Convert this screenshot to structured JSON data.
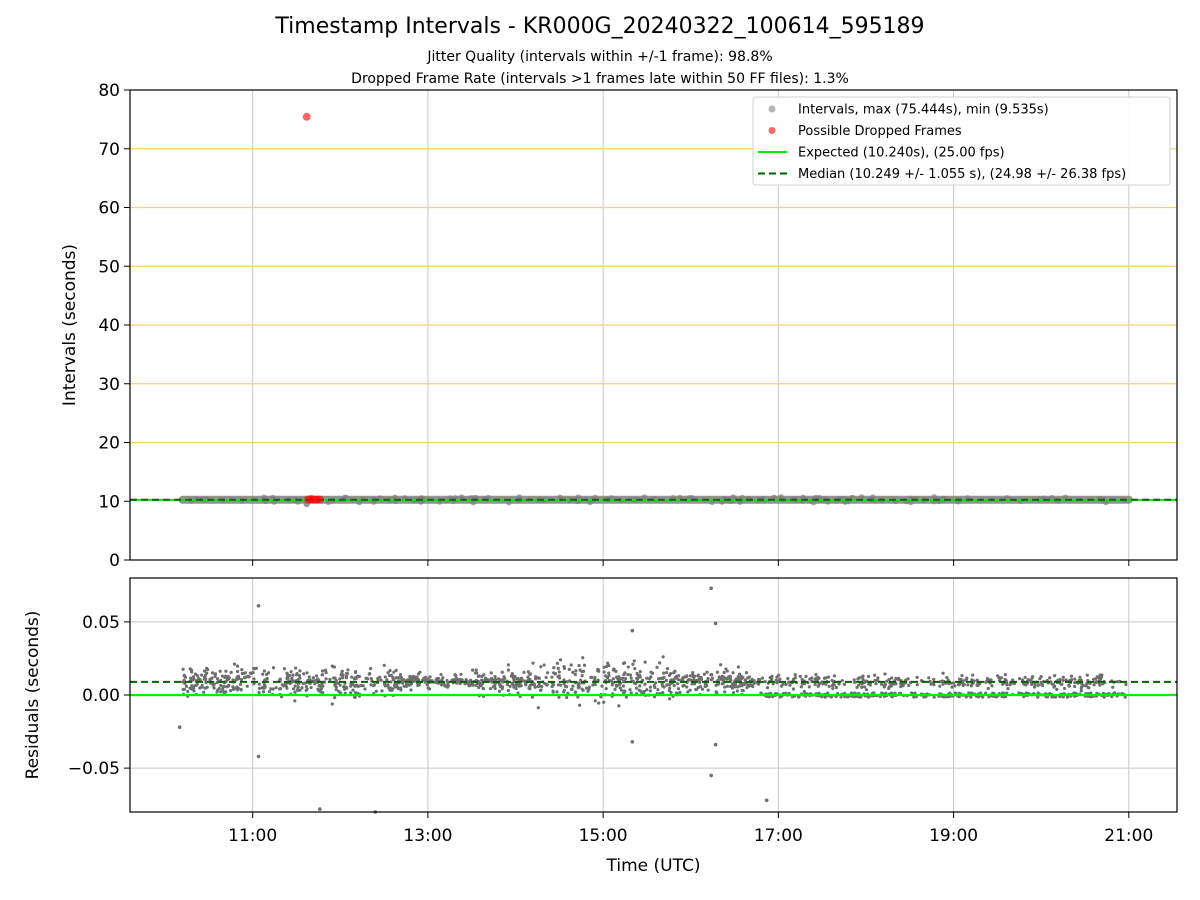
{
  "title": "Timestamp Intervals - KR000G_20240322_100614_595189",
  "subtitle_jitter": "Jitter Quality (intervals within +/-1 frame): 98.8%",
  "subtitle_dropped": "Dropped Frame Rate (intervals >1 frames late within 50 FF files): 1.3%",
  "colors": {
    "intervals": "#808080",
    "dropped": "#ff0000",
    "expected": "#00ee00",
    "median": "#006400",
    "reference_lines": "#ffd166",
    "grid": "#c8c8c8"
  },
  "chart_data": [
    {
      "type": "scatter",
      "name": "intervals",
      "xlabel": "",
      "ylabel": "Intervals (seconds)",
      "ylim": [
        0,
        80
      ],
      "yticks": [
        0,
        10,
        20,
        30,
        40,
        50,
        60,
        70,
        80
      ],
      "xlim_hours": [
        9.6,
        21.55
      ],
      "xticks": [
        "11:00",
        "13:00",
        "15:00",
        "17:00",
        "19:00",
        "21:00"
      ],
      "xtick_hours": [
        11,
        13,
        15,
        17,
        19,
        21
      ],
      "grid": true,
      "legend_position": "top-right",
      "reference_lines_y": [
        20,
        30,
        40,
        50,
        60,
        70
      ],
      "series": [
        {
          "name": "Intervals, max (75.444s), min (9.535s)",
          "x_start": "10:12",
          "x_end": "21:00",
          "typical_value": 10.25,
          "max": 75.444,
          "min": 9.535
        },
        {
          "name": "Possible Dropped Frames",
          "points": [
            {
              "x": "11:37",
              "y": 75.444
            },
            {
              "x": "11:38",
              "y": 10.3
            },
            {
              "x": "11:40",
              "y": 10.3
            },
            {
              "x": "11:42",
              "y": 10.3
            },
            {
              "x": "11:44",
              "y": 10.3
            },
            {
              "x": "11:46",
              "y": 10.3
            }
          ]
        },
        {
          "name": "Expected (10.240s), (25.00 fps)",
          "y": 10.24
        },
        {
          "name": "Median (10.249 +/- 1.055 s), (24.98 +/- 26.38 fps)",
          "y": 10.249
        }
      ]
    },
    {
      "type": "scatter",
      "name": "residuals",
      "xlabel": "Time (UTC)",
      "ylabel": "Residuals (seconds)",
      "ylim": [
        -0.08,
        0.08
      ],
      "yticks": [
        0.05,
        0.0,
        -0.05
      ],
      "ytick_labels": [
        "0.05",
        "0.00",
        "−0.05"
      ],
      "xlim_hours": [
        9.6,
        21.55
      ],
      "xticks": [
        "11:00",
        "13:00",
        "15:00",
        "17:00",
        "19:00",
        "21:00"
      ],
      "xtick_hours": [
        11,
        13,
        15,
        17,
        19,
        21
      ],
      "grid": true,
      "expected_line": 0.0,
      "median_line": 0.009,
      "outliers": [
        {
          "x": "11:04",
          "y": 0.061
        },
        {
          "x": "11:04",
          "y": -0.042
        },
        {
          "x": "10:10",
          "y": -0.022
        },
        {
          "x": "11:46",
          "y": -0.078
        },
        {
          "x": "12:24",
          "y": -0.08
        },
        {
          "x": "15:20",
          "y": 0.044
        },
        {
          "x": "15:20",
          "y": -0.032
        },
        {
          "x": "16:14",
          "y": 0.073
        },
        {
          "x": "16:17",
          "y": 0.049
        },
        {
          "x": "16:17",
          "y": -0.034
        },
        {
          "x": "16:14",
          "y": -0.055
        },
        {
          "x": "16:52",
          "y": -0.072
        }
      ]
    }
  ]
}
